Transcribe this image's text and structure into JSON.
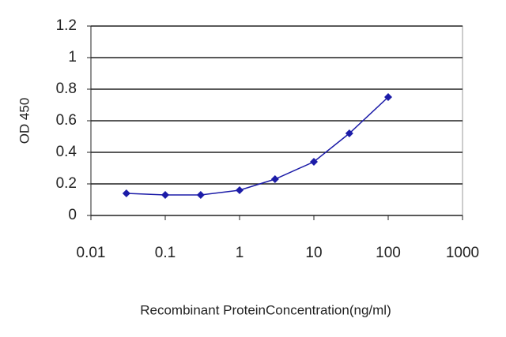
{
  "chart_data": {
    "type": "line",
    "x_label": "Recombinant ProteinConcentration(ng/ml)",
    "y_label": "OD 450",
    "x": [
      0.03,
      0.1,
      0.3,
      1,
      3,
      10,
      30,
      100
    ],
    "values": [
      0.14,
      0.13,
      0.13,
      0.16,
      0.23,
      0.34,
      0.52,
      0.75
    ],
    "color": "#1c1ca8",
    "xscale": "log",
    "xlim": [
      0.01,
      1000
    ],
    "xticks": [
      0.01,
      0.1,
      1,
      10,
      100,
      1000
    ],
    "ylim": [
      0,
      1.2
    ],
    "yticks": [
      0,
      0.2,
      0.4,
      0.6,
      0.8,
      1,
      1.2
    ],
    "grid": true
  }
}
